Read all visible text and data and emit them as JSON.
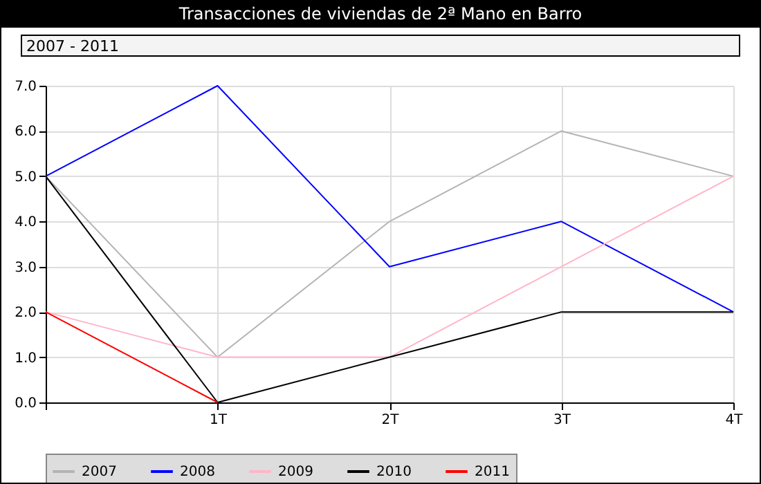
{
  "chart_data": {
    "type": "line",
    "title": "Transacciones de viviendas de 2ª Mano en Barro",
    "subtitle": "2007 - 2011",
    "categories": [
      null,
      "1T",
      "2T",
      "3T",
      "4T"
    ],
    "series": [
      {
        "name": "2007",
        "color": "#b4b4b4",
        "values": [
          5,
          1,
          4,
          6,
          5
        ]
      },
      {
        "name": "2008",
        "color": "#0000ff",
        "values": [
          5,
          7,
          3,
          4,
          2
        ]
      },
      {
        "name": "2009",
        "color": "#ffb6c8",
        "values": [
          2,
          1,
          1,
          3,
          5
        ]
      },
      {
        "name": "2010",
        "color": "#000000",
        "values": [
          5,
          0,
          1,
          2,
          2
        ]
      },
      {
        "name": "2011",
        "color": "#ff0000",
        "values": [
          2,
          0,
          null,
          null,
          null
        ]
      }
    ],
    "ylim": [
      0,
      7
    ],
    "yticks": [
      {
        "value": 0,
        "label": "0.0"
      },
      {
        "value": 1,
        "label": "1.0"
      },
      {
        "value": 2,
        "label": "2.0"
      },
      {
        "value": 3,
        "label": "3.0"
      },
      {
        "value": 4,
        "label": "4.0"
      },
      {
        "value": 5,
        "label": "5.0"
      },
      {
        "value": 6,
        "label": "6.0"
      },
      {
        "value": 7,
        "label": "7.0"
      }
    ],
    "grid": true,
    "legend": "bottom"
  }
}
